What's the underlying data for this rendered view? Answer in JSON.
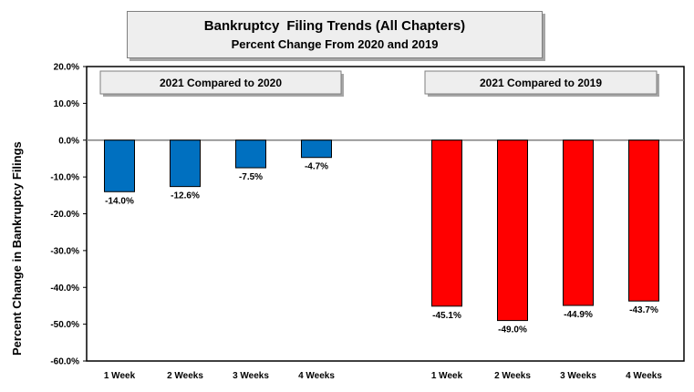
{
  "title": {
    "line1_part1": "Bankruptcy",
    "line1_part2": "Filing Trends (All Chapters)",
    "line2": "Percent Change From 2020 and 2019"
  },
  "chart_data": {
    "type": "bar",
    "title": "Bankruptcy Filing Trends (All Chapters) Percent Change From 2020 and 2019",
    "ylabel": "Percent Change in Bankruptcy Filings",
    "xlabel": "",
    "ylim": [
      -60,
      20
    ],
    "yticks": [
      20,
      10,
      0,
      -10,
      -20,
      -30,
      -40,
      -50,
      -60
    ],
    "ytick_labels": [
      "20.0%",
      "10.0%",
      "0.0%",
      "-10.0%",
      "-20.0%",
      "-30.0%",
      "-40.0%",
      "-50.0%",
      "-60.0%"
    ],
    "grid": false,
    "groups": [
      {
        "name": "2021 Compared to 2020",
        "color": "#0070c0",
        "categories": [
          "1 Week",
          "2 Weeks",
          "3 Weeks",
          "4 Weeks"
        ],
        "values": [
          -14.0,
          -12.6,
          -7.5,
          -4.7
        ],
        "labels": [
          "-14.0%",
          "-12.6%",
          "-7.5%",
          "-4.7%"
        ]
      },
      {
        "name": "2021 Compared to 2019",
        "color": "#ff0000",
        "categories": [
          "1 Week",
          "2 Weeks",
          "3 Weeks",
          "4 Weeks"
        ],
        "values": [
          -45.1,
          -49.0,
          -44.9,
          -43.7
        ],
        "labels": [
          "-45.1%",
          "-49.0%",
          "-44.9%",
          "-43.7%"
        ]
      }
    ]
  }
}
